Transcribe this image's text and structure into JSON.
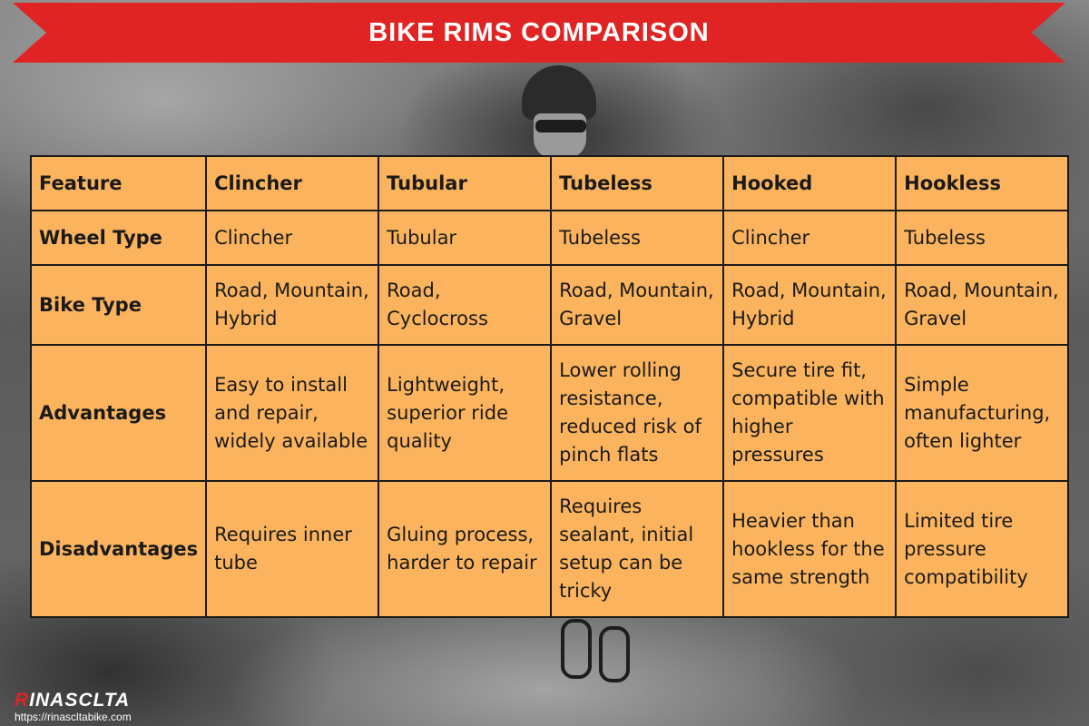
{
  "banner": {
    "title": "BIKE RIMS COMPARISON"
  },
  "table": {
    "headers": [
      "Feature",
      "Clincher",
      "Tubular",
      "Tubeless",
      "Hooked",
      "Hookless"
    ],
    "rows": [
      {
        "label": "Wheel Type",
        "cells": [
          "Clincher",
          "Tubular",
          "Tubeless",
          "Clincher",
          "Tubeless"
        ]
      },
      {
        "label": "Bike Type",
        "cells": [
          "Road, Mountain, Hybrid",
          "Road, Cyclocross",
          "Road, Mountain, Gravel",
          "Road, Mountain, Hybrid",
          "Road, Mountain, Gravel"
        ]
      },
      {
        "label": "Advantages",
        "cells": [
          "Easy to install and repair, widely available",
          "Lightweight, superior ride quality",
          "Lower rolling resistance, reduced risk of pinch flats",
          "Secure tire fit, compatible with higher pressures",
          "Simple manufacturing, often lighter"
        ]
      },
      {
        "label": "Disadvantages",
        "cells": [
          "Requires inner tube",
          "Gluing process, harder to repair",
          "Requires sealant, initial setup can be tricky",
          "Heavier than hookless for the same strength",
          "Limited tire pressure compatibility"
        ]
      }
    ]
  },
  "logo": {
    "first_letter": "R",
    "rest": "INASCLTA",
    "url": "https://rinascltabike.com"
  },
  "colors": {
    "banner": "#e02424",
    "table_fill": "#fbb45d",
    "border": "#1a1a1a"
  }
}
